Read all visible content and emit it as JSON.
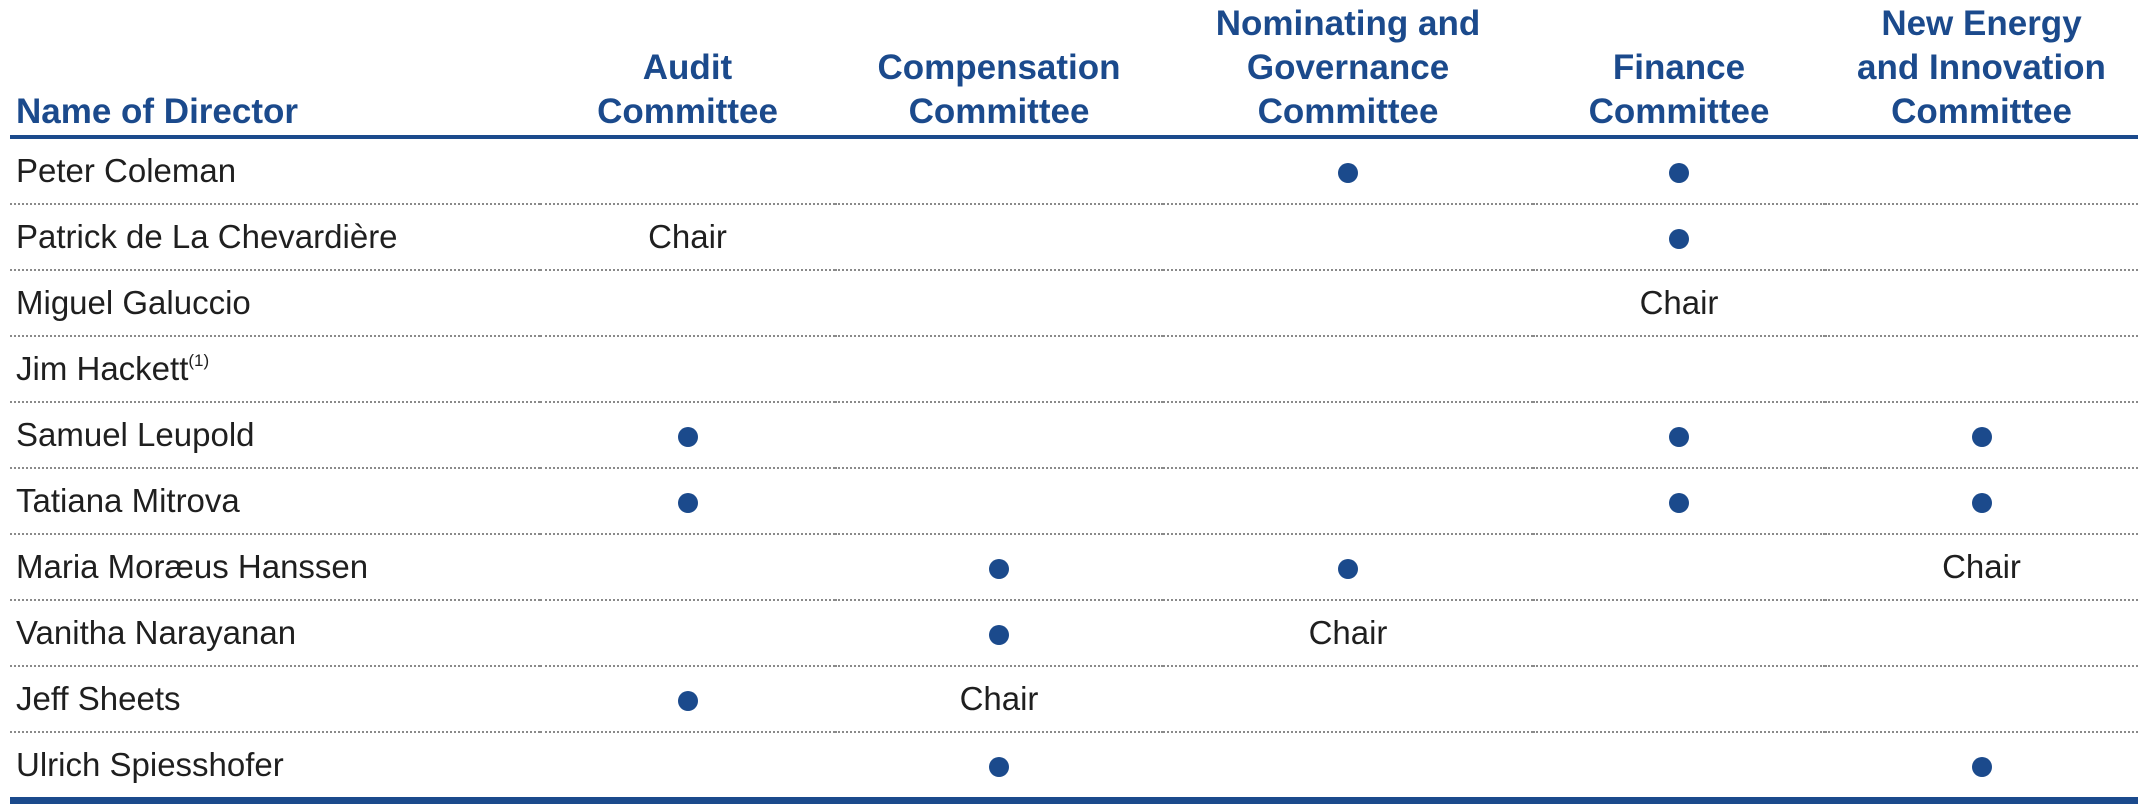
{
  "colors": {
    "accent": "#1b4a8c"
  },
  "header": {
    "name_col": "Name of Director",
    "committees": [
      {
        "lines": [
          "Audit",
          "Committee"
        ]
      },
      {
        "lines": [
          "Compensation",
          "Committee"
        ]
      },
      {
        "lines": [
          "Nominating and",
          "Governance",
          "Committee"
        ]
      },
      {
        "lines": [
          "Finance",
          "Committee"
        ]
      },
      {
        "lines": [
          "New Energy",
          "and Innovation",
          "Committee"
        ]
      }
    ]
  },
  "rows": [
    {
      "name": "Peter Coleman",
      "sup": "",
      "cells": [
        "",
        "",
        "member-dot",
        "member-dot",
        ""
      ]
    },
    {
      "name": "Patrick de La Chevardière",
      "sup": "",
      "cells": [
        "Chair",
        "",
        "",
        "member-dot",
        ""
      ]
    },
    {
      "name": "Miguel Galuccio",
      "sup": "",
      "cells": [
        "",
        "",
        "",
        "Chair",
        ""
      ]
    },
    {
      "name": "Jim Hackett",
      "sup": "(1)",
      "cells": [
        "",
        "",
        "",
        "",
        ""
      ]
    },
    {
      "name": "Samuel Leupold",
      "sup": "",
      "cells": [
        "member-dot",
        "",
        "",
        "member-dot",
        "member-dot"
      ]
    },
    {
      "name": "Tatiana Mitrova",
      "sup": "",
      "cells": [
        "member-dot",
        "",
        "",
        "member-dot",
        "member-dot"
      ]
    },
    {
      "name": "Maria Moræus Hanssen",
      "sup": "",
      "cells": [
        "",
        "member-dot",
        "member-dot",
        "",
        "Chair"
      ]
    },
    {
      "name": "Vanitha Narayanan",
      "sup": "",
      "cells": [
        "",
        "member-dot",
        "Chair",
        "",
        ""
      ]
    },
    {
      "name": "Jeff Sheets",
      "sup": "",
      "cells": [
        "member-dot",
        "Chair",
        "",
        "",
        ""
      ]
    },
    {
      "name": "Ulrich Spiesshofer",
      "sup": "",
      "cells": [
        "",
        "member-dot",
        "",
        "",
        "member-dot"
      ]
    }
  ]
}
